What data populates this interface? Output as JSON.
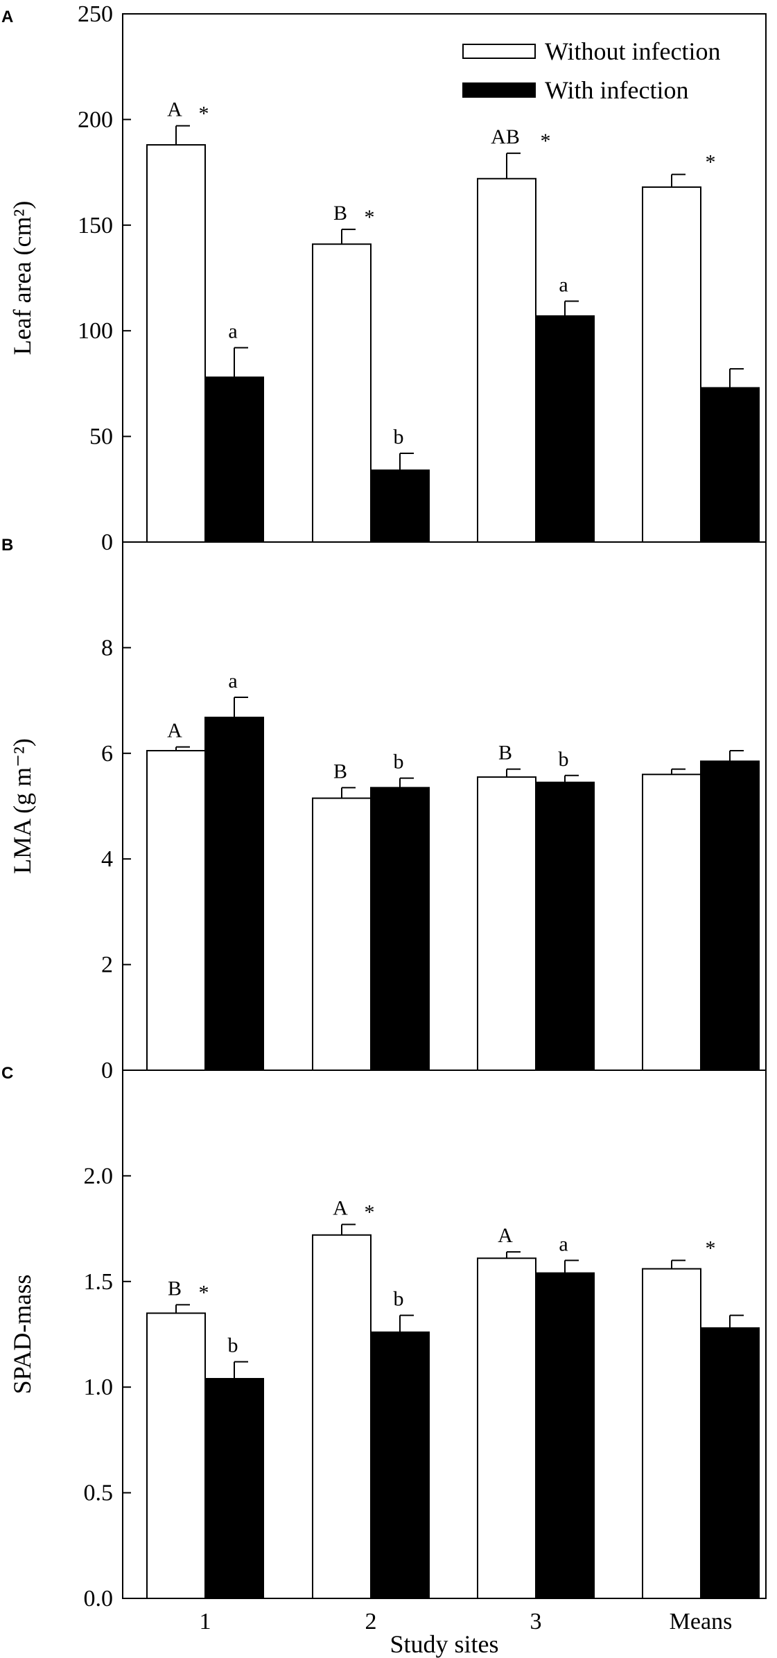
{
  "chart_data": [
    {
      "panel": "A",
      "type": "bar",
      "categories": [
        "1",
        "2",
        "3",
        "Means"
      ],
      "xlabel": "",
      "ylabel": "Leaf area (cm²)",
      "ylim": [
        0,
        250
      ],
      "yticks": [
        "0",
        "50",
        "100",
        "150",
        "200",
        "250"
      ],
      "legend": {
        "placement": "top-right"
      },
      "series": [
        {
          "name": "Without infection",
          "fill": "#ffffff",
          "values": [
            188,
            141,
            172,
            168
          ],
          "errors": [
            9,
            7,
            12,
            6
          ],
          "letters": [
            "A",
            "B",
            "AB",
            ""
          ],
          "stars": [
            "*",
            "*",
            "*",
            "*"
          ]
        },
        {
          "name": "With infection",
          "fill": "#000000",
          "values": [
            78,
            34,
            107,
            73
          ],
          "errors": [
            14,
            8,
            7,
            9
          ],
          "letters": [
            "a",
            "b",
            "a",
            ""
          ],
          "stars": [
            "",
            "",
            "",
            ""
          ]
        }
      ]
    },
    {
      "panel": "B",
      "type": "bar",
      "categories": [
        "1",
        "2",
        "3",
        "Means"
      ],
      "xlabel": "",
      "ylabel": "LMA (g m⁻²)",
      "ylim": [
        0,
        10
      ],
      "yticks": [
        "0",
        "2",
        "4",
        "6",
        "8"
      ],
      "series": [
        {
          "fill": "#ffffff",
          "values": [
            6.05,
            5.15,
            5.55,
            5.6
          ],
          "errors": [
            0.07,
            0.2,
            0.15,
            0.1
          ],
          "letters": [
            "A",
            "B",
            "B",
            ""
          ],
          "stars": [
            "",
            "",
            "",
            ""
          ]
        },
        {
          "fill": "#000000",
          "values": [
            6.68,
            5.35,
            5.45,
            5.85
          ],
          "errors": [
            0.38,
            0.18,
            0.13,
            0.2
          ],
          "letters": [
            "a",
            "b",
            "b",
            ""
          ],
          "stars": [
            "",
            "",
            "",
            ""
          ]
        }
      ]
    },
    {
      "panel": "C",
      "type": "bar",
      "categories": [
        "1",
        "2",
        "3",
        "Means"
      ],
      "xlabel": "Study sites",
      "ylabel": "SPAD-mass",
      "ylim": [
        0,
        2.5
      ],
      "yticks": [
        "0.0",
        "0.5",
        "1.0",
        "1.5",
        "2.0"
      ],
      "series": [
        {
          "fill": "#ffffff",
          "values": [
            1.35,
            1.72,
            1.61,
            1.56
          ],
          "errors": [
            0.04,
            0.05,
            0.03,
            0.04
          ],
          "letters": [
            "B",
            "A",
            "A",
            ""
          ],
          "stars": [
            "*",
            "*",
            "",
            "*"
          ]
        },
        {
          "fill": "#000000",
          "values": [
            1.04,
            1.26,
            1.54,
            1.28
          ],
          "errors": [
            0.08,
            0.08,
            0.06,
            0.06
          ],
          "letters": [
            "b",
            "b",
            "a",
            ""
          ],
          "stars": [
            "",
            "",
            "",
            ""
          ]
        }
      ]
    }
  ]
}
